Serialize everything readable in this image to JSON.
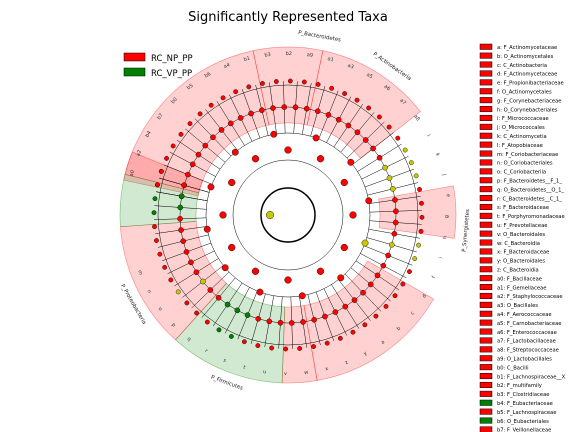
{
  "chart_data": {
    "type": "cladogram",
    "title": "Significantly Represented Taxa",
    "legend": [
      {
        "name": "RC_NP_PP",
        "color": "#ff0000"
      },
      {
        "name": "RC_VP_PP",
        "color": "#008000"
      }
    ],
    "phylum_labels": [
      "P_Bacteroidetes",
      "P_Synergistetes",
      "P_Proteobacteria",
      "P_Firmicutes",
      "P_Actinobacteria"
    ],
    "clade_labels": [
      "a0",
      "a2",
      "b4",
      "b7",
      "b0",
      "b5",
      "b6",
      "a4",
      "b1",
      "b3",
      "b2",
      "a9",
      "a1",
      "a3",
      "a5",
      "a6",
      "a7",
      "a8",
      "l",
      "k",
      "j",
      "e",
      "g",
      "h",
      "i",
      "f",
      "d",
      "c",
      "b",
      "a",
      "y",
      "z",
      "x",
      "w",
      "v",
      "u",
      "t",
      "s",
      "r",
      "q",
      "p",
      "o",
      "n",
      "m"
    ],
    "key": [
      {
        "code": "a",
        "taxon": "F_Actinomycetaceae",
        "group": "RC_NP_PP"
      },
      {
        "code": "b",
        "taxon": "O_Actinomycetales",
        "group": "RC_NP_PP"
      },
      {
        "code": "c",
        "taxon": "C_Actinobacteria",
        "group": "RC_NP_PP"
      },
      {
        "code": "d",
        "taxon": "F_Actinomycetaceae",
        "group": "RC_NP_PP"
      },
      {
        "code": "e",
        "taxon": "F_Propionibacteriaceae",
        "group": "RC_NP_PP"
      },
      {
        "code": "f",
        "taxon": "O_Actinomycetales",
        "group": "RC_NP_PP"
      },
      {
        "code": "g",
        "taxon": "F_Corynebacteriaceae",
        "group": "RC_NP_PP"
      },
      {
        "code": "h",
        "taxon": "O_Corynebacteriales",
        "group": "RC_NP_PP"
      },
      {
        "code": "i",
        "taxon": "F_Micrococcaceae",
        "group": "RC_NP_PP"
      },
      {
        "code": "j",
        "taxon": "O_Micrococcales",
        "group": "RC_NP_PP"
      },
      {
        "code": "k",
        "taxon": "C_Actinomycetia",
        "group": "RC_NP_PP"
      },
      {
        "code": "l",
        "taxon": "F_Atopobiaceae",
        "group": "RC_NP_PP"
      },
      {
        "code": "m",
        "taxon": "F_Coriobacteriaceae",
        "group": "RC_NP_PP"
      },
      {
        "code": "n",
        "taxon": "O_Coriobacteriales",
        "group": "RC_NP_PP"
      },
      {
        "code": "o",
        "taxon": "C_Coriobacteriia",
        "group": "RC_NP_PP"
      },
      {
        "code": "p",
        "taxon": "F_Bacteroidetes__F_1_",
        "group": "RC_NP_PP"
      },
      {
        "code": "q",
        "taxon": "O_Bacteroidetes__O_1_",
        "group": "RC_NP_PP"
      },
      {
        "code": "r",
        "taxon": "C_Bacteroidetes__C_1_",
        "group": "RC_NP_PP"
      },
      {
        "code": "s",
        "taxon": "F_Bacteroidaceae",
        "group": "RC_NP_PP"
      },
      {
        "code": "t",
        "taxon": "F_Porphyromonadaceae",
        "group": "RC_NP_PP"
      },
      {
        "code": "u",
        "taxon": "F_Prevotellaceae",
        "group": "RC_NP_PP"
      },
      {
        "code": "v",
        "taxon": "O_Bacteroidales",
        "group": "RC_NP_PP"
      },
      {
        "code": "w",
        "taxon": "C_Bacteroidia",
        "group": "RC_NP_PP"
      },
      {
        "code": "x",
        "taxon": "F_Bacteroidaceae",
        "group": "RC_NP_PP"
      },
      {
        "code": "y",
        "taxon": "O_Bacteroidales",
        "group": "RC_NP_PP"
      },
      {
        "code": "z",
        "taxon": "C_Bacteroidia",
        "group": "RC_NP_PP"
      },
      {
        "code": "a0",
        "taxon": "F_Bacillaceae",
        "group": "RC_NP_PP"
      },
      {
        "code": "a1",
        "taxon": "F_Gemellaceae",
        "group": "RC_NP_PP"
      },
      {
        "code": "a2",
        "taxon": "F_Staphylococcaceae",
        "group": "RC_NP_PP"
      },
      {
        "code": "a3",
        "taxon": "O_Bacillales",
        "group": "RC_NP_PP"
      },
      {
        "code": "a4",
        "taxon": "F_Aerococcaceae",
        "group": "RC_NP_PP"
      },
      {
        "code": "a5",
        "taxon": "F_Carnobacteriaceae",
        "group": "RC_NP_PP"
      },
      {
        "code": "a6",
        "taxon": "F_Enterococcaceae",
        "group": "RC_NP_PP"
      },
      {
        "code": "a7",
        "taxon": "F_Lactobacillaceae",
        "group": "RC_NP_PP"
      },
      {
        "code": "a8",
        "taxon": "F_Streptococcaceae",
        "group": "RC_NP_PP"
      },
      {
        "code": "a9",
        "taxon": "O_Lactobacillales",
        "group": "RC_NP_PP"
      },
      {
        "code": "b0",
        "taxon": "C_Bacilli",
        "group": "RC_NP_PP"
      },
      {
        "code": "b1",
        "taxon": "F_Lachnospiraceae__X",
        "group": "RC_NP_PP"
      },
      {
        "code": "b2",
        "taxon": "F_multifamily",
        "group": "RC_NP_PP"
      },
      {
        "code": "b3",
        "taxon": "F_Clostridiaceae",
        "group": "RC_NP_PP"
      },
      {
        "code": "b4",
        "taxon": "F_Eubacteriaceae",
        "group": "RC_VP_PP"
      },
      {
        "code": "b5",
        "taxon": "F_Lachnospiraceae",
        "group": "RC_NP_PP"
      },
      {
        "code": "b6",
        "taxon": "O_Eubacteriales",
        "group": "RC_VP_PP"
      },
      {
        "code": "b7",
        "taxon": "F_Veillonellaceae",
        "group": "RC_NP_PP"
      }
    ]
  }
}
